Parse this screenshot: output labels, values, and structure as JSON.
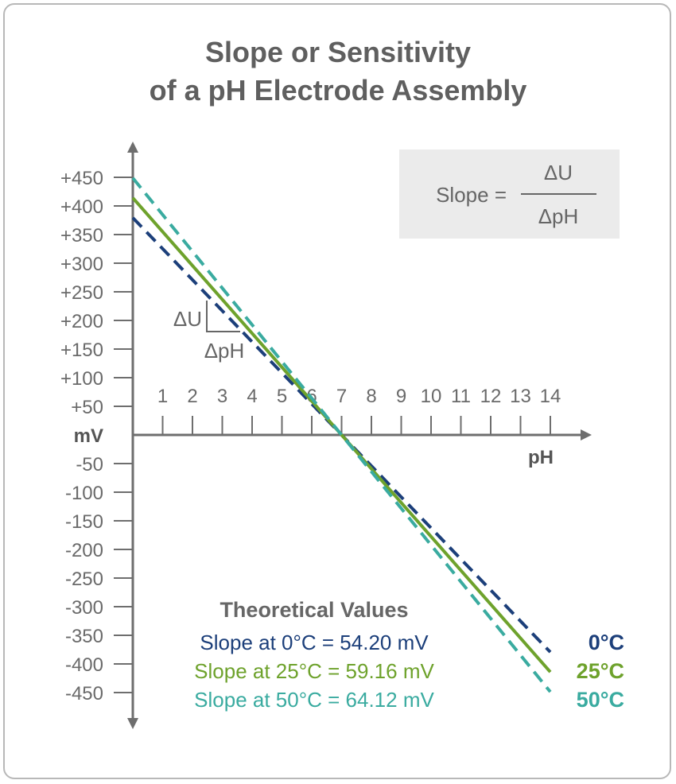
{
  "title_line1": "Slope or Sensitivity",
  "title_line2": "of a pH Electrode Assembly",
  "formula": {
    "lhs": "Slope =",
    "numerator": "ΔU",
    "denominator": "ΔpH"
  },
  "triangle": {
    "du_label": "ΔU",
    "dph_label": "ΔpH"
  },
  "legend": {
    "heading": "Theoretical Values",
    "entries": [
      "Slope at 0°C = 54.20 mV",
      "Slope at 25°C = 59.16 mV",
      "Slope at 50°C = 64.12 mV"
    ]
  },
  "chart_data": {
    "type": "line",
    "xlabel": "pH",
    "ylabel": "mV",
    "x_ticks": [
      1,
      2,
      3,
      4,
      5,
      6,
      7,
      8,
      9,
      10,
      11,
      12,
      13,
      14
    ],
    "y_tick_labels": [
      "+450",
      "+400",
      "+350",
      "+300",
      "+250",
      "+200",
      "+150",
      "+100",
      "+50",
      "mV",
      "-50",
      "-100",
      "-150",
      "-200",
      "-250",
      "-300",
      "-350",
      "-400",
      "-450"
    ],
    "y_tick_values": [
      450,
      400,
      350,
      300,
      250,
      200,
      150,
      100,
      50,
      0,
      -50,
      -100,
      -150,
      -200,
      -250,
      -300,
      -350,
      -400,
      -450
    ],
    "xlim": [
      0,
      15
    ],
    "ylim": [
      -500,
      500
    ],
    "series": [
      {
        "name": "0°C",
        "slope_mV_per_pH": 54.2,
        "x": [
          0,
          14
        ],
        "y": [
          379.4,
          -379.4
        ],
        "style": "dashed",
        "color": "#1c3f7a"
      },
      {
        "name": "25°C",
        "slope_mV_per_pH": 59.16,
        "x": [
          0,
          14
        ],
        "y": [
          414.1,
          -414.1
        ],
        "style": "solid",
        "color": "#6ea22c"
      },
      {
        "name": "50°C",
        "slope_mV_per_pH": 64.12,
        "x": [
          0,
          14
        ],
        "y": [
          448.8,
          -448.8
        ],
        "style": "dashed",
        "color": "#3aaba0"
      }
    ],
    "legend_colors": [
      "#1c3f7a",
      "#6ea22c",
      "#3aaba0"
    ],
    "axis_color": "#6e6e6e",
    "grid": false
  }
}
